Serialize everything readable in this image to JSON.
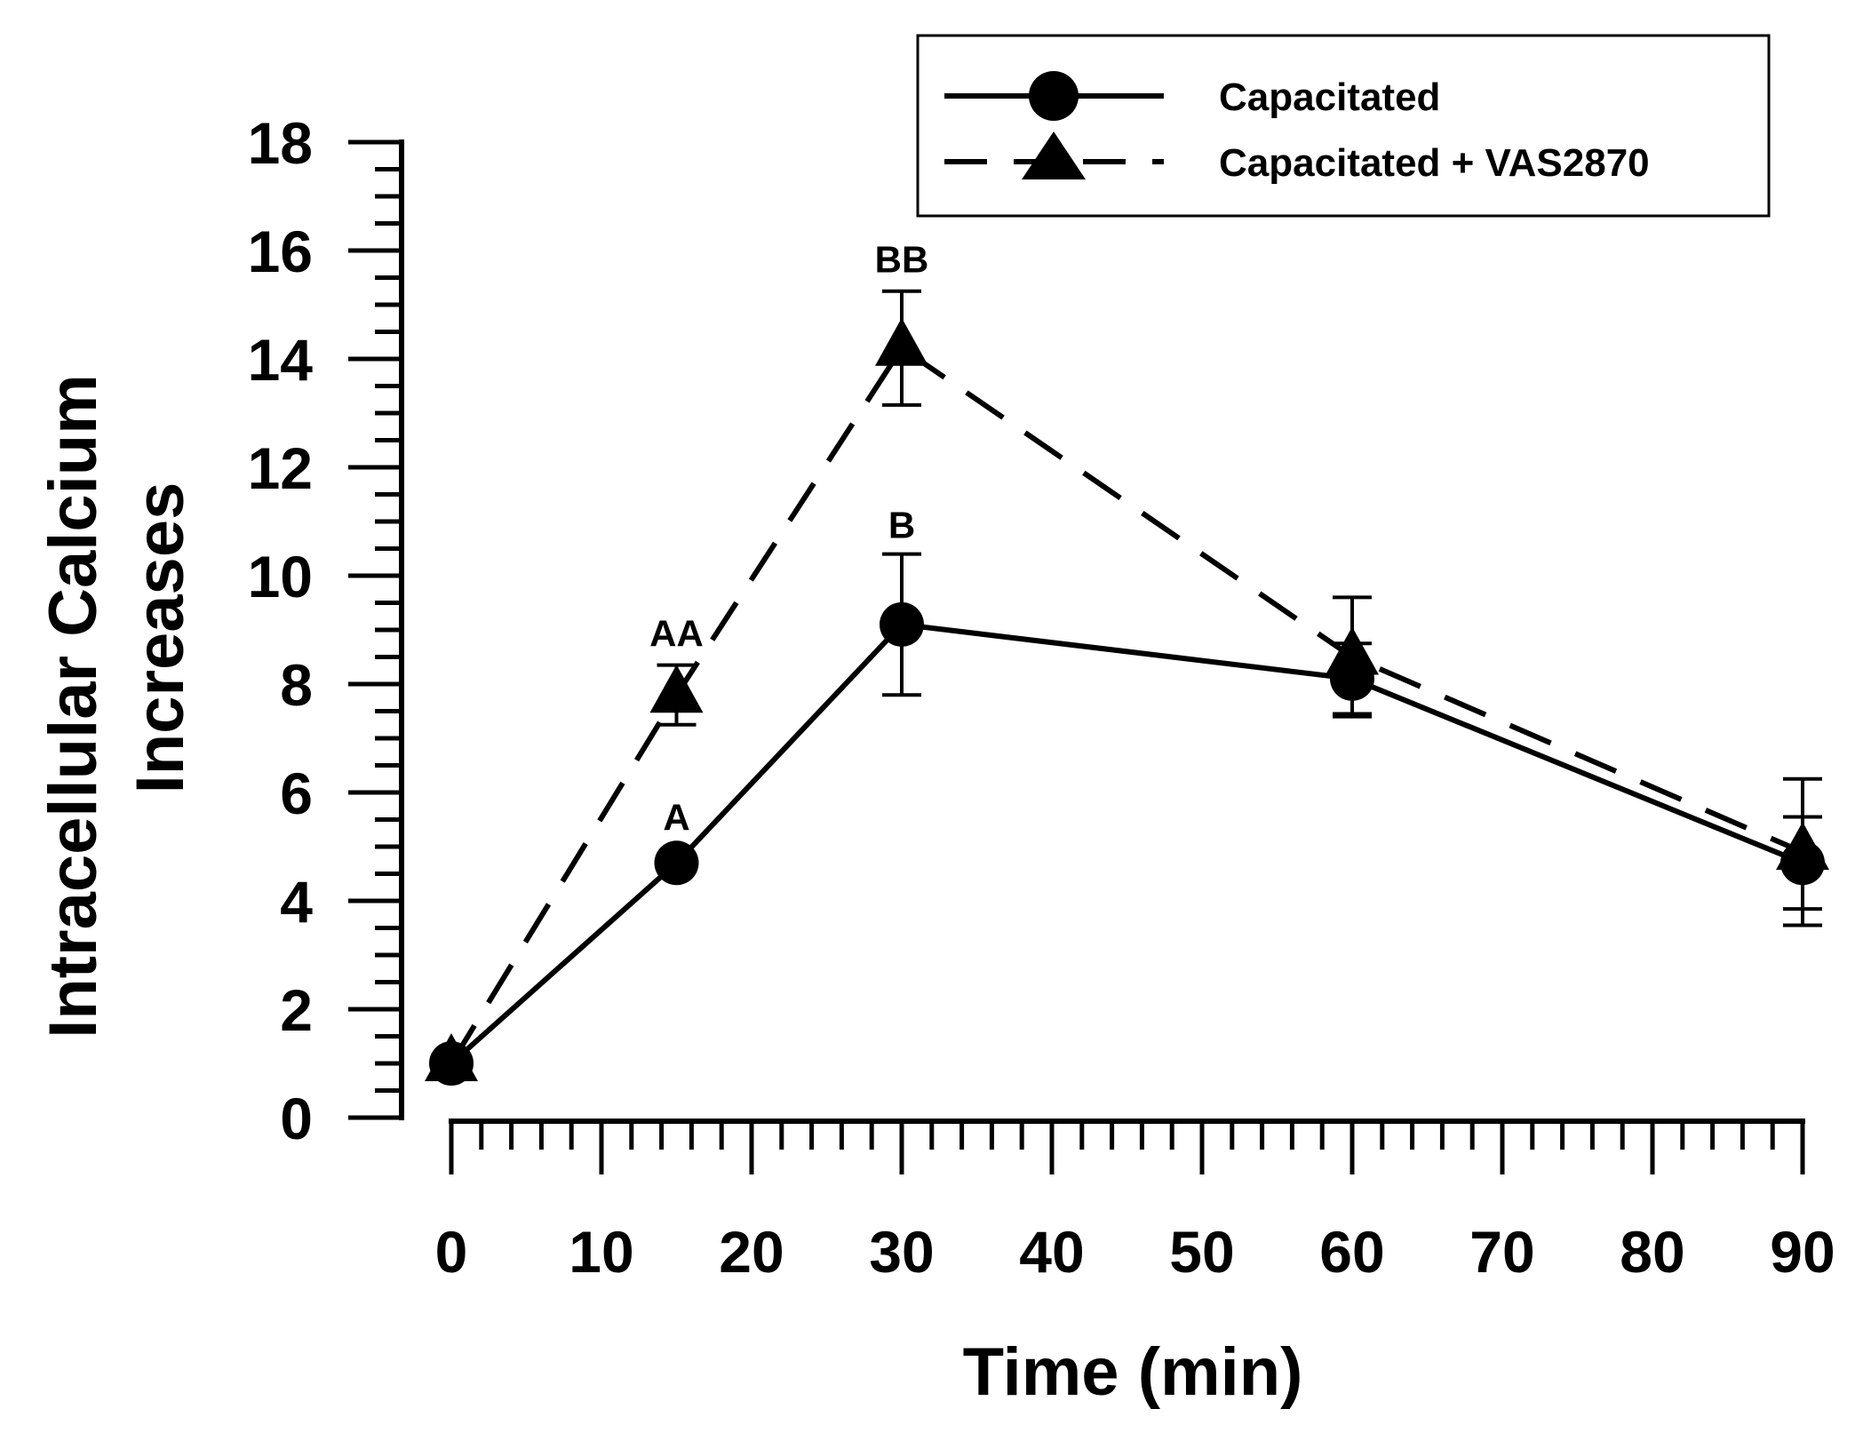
{
  "chart_data": {
    "type": "line",
    "title": "",
    "xlabel": "Time (min)",
    "ylabel_lines": [
      "Intracellular Calcium",
      "Increases"
    ],
    "xlim": [
      0,
      90
    ],
    "ylim": [
      0,
      18
    ],
    "xticks": [
      0,
      10,
      20,
      30,
      40,
      50,
      60,
      70,
      80,
      90
    ],
    "xtick_labels": [
      "0",
      "10",
      "20",
      "30",
      "40",
      "50",
      "60",
      "70",
      "80",
      "90"
    ],
    "xminor_step": 2,
    "yticks": [
      0,
      2,
      4,
      6,
      8,
      10,
      12,
      14,
      16,
      18
    ],
    "ytick_labels": [
      "0",
      "2",
      "4",
      "6",
      "8",
      "10",
      "12",
      "14",
      "16",
      "18"
    ],
    "yminor_step": 0.5,
    "grid": false,
    "legend_position": "top-right",
    "series": [
      {
        "name": "Capacitated",
        "marker": "circle",
        "line_style": "solid",
        "x": [
          0,
          15,
          30,
          60,
          90
        ],
        "y": [
          1.0,
          4.7,
          9.1,
          8.1,
          4.7
        ],
        "error": [
          0,
          0,
          1.3,
          0.65,
          0.85
        ]
      },
      {
        "name": "Capacitated + VAS2870",
        "marker": "triangle",
        "line_style": "dashed",
        "x": [
          0,
          15,
          30,
          60,
          90
        ],
        "y": [
          1.0,
          7.8,
          14.2,
          8.5,
          4.9
        ],
        "error": [
          0,
          0.55,
          1.05,
          1.1,
          1.35
        ]
      }
    ],
    "annotations": [
      {
        "text": "A",
        "x": 15,
        "y": 5.3
      },
      {
        "text": "AA",
        "x": 15,
        "y": 8.7
      },
      {
        "text": "B",
        "x": 30,
        "y": 10.7
      },
      {
        "text": "BB",
        "x": 30,
        "y": 15.6
      }
    ]
  }
}
